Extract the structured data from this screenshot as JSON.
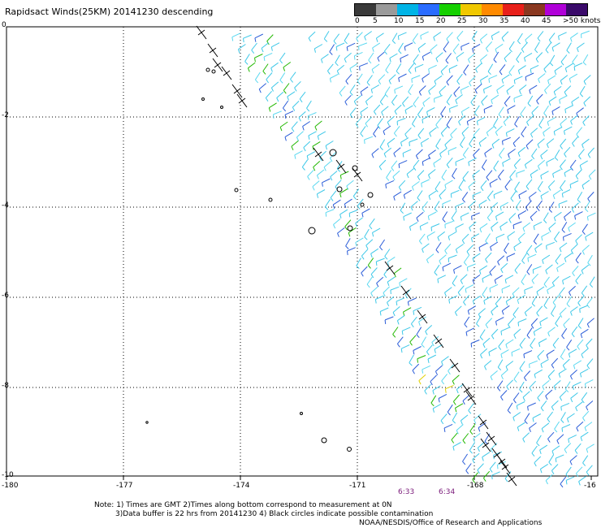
{
  "title": "Rapidsact Winds(25KM) 20141230 descending",
  "legend": {
    "colors": [
      "#3a3a3a",
      "#9a9a9a",
      "#00b4e6",
      "#2a6cff",
      "#15d000",
      "#f0c800",
      "#ff8a00",
      "#e8201a",
      "#8a3820",
      "#b000d8",
      "#3a0a6a"
    ],
    "labels": [
      "0",
      "5",
      "10",
      "15",
      "20",
      "25",
      "30",
      "35",
      "40",
      "45",
      ">50 knots"
    ]
  },
  "axes": {
    "x_ticks": [
      "-180",
      "-177",
      "-174",
      "-171",
      "-168",
      "-16"
    ],
    "y_ticks": [
      "0",
      "-2",
      "-4",
      "-6",
      "-8",
      "-10"
    ]
  },
  "times": [
    "6:33",
    "6:34"
  ],
  "notes": [
    "Note: 1) Times are GMT 2)Times along bottom correspond to measurement at 0N",
    "3)Data buffer is 22 hrs from 20141230 4) Black circles indicate possible contamination",
    "NOAA/NESDIS/Office of Research and Applications"
  ]
}
